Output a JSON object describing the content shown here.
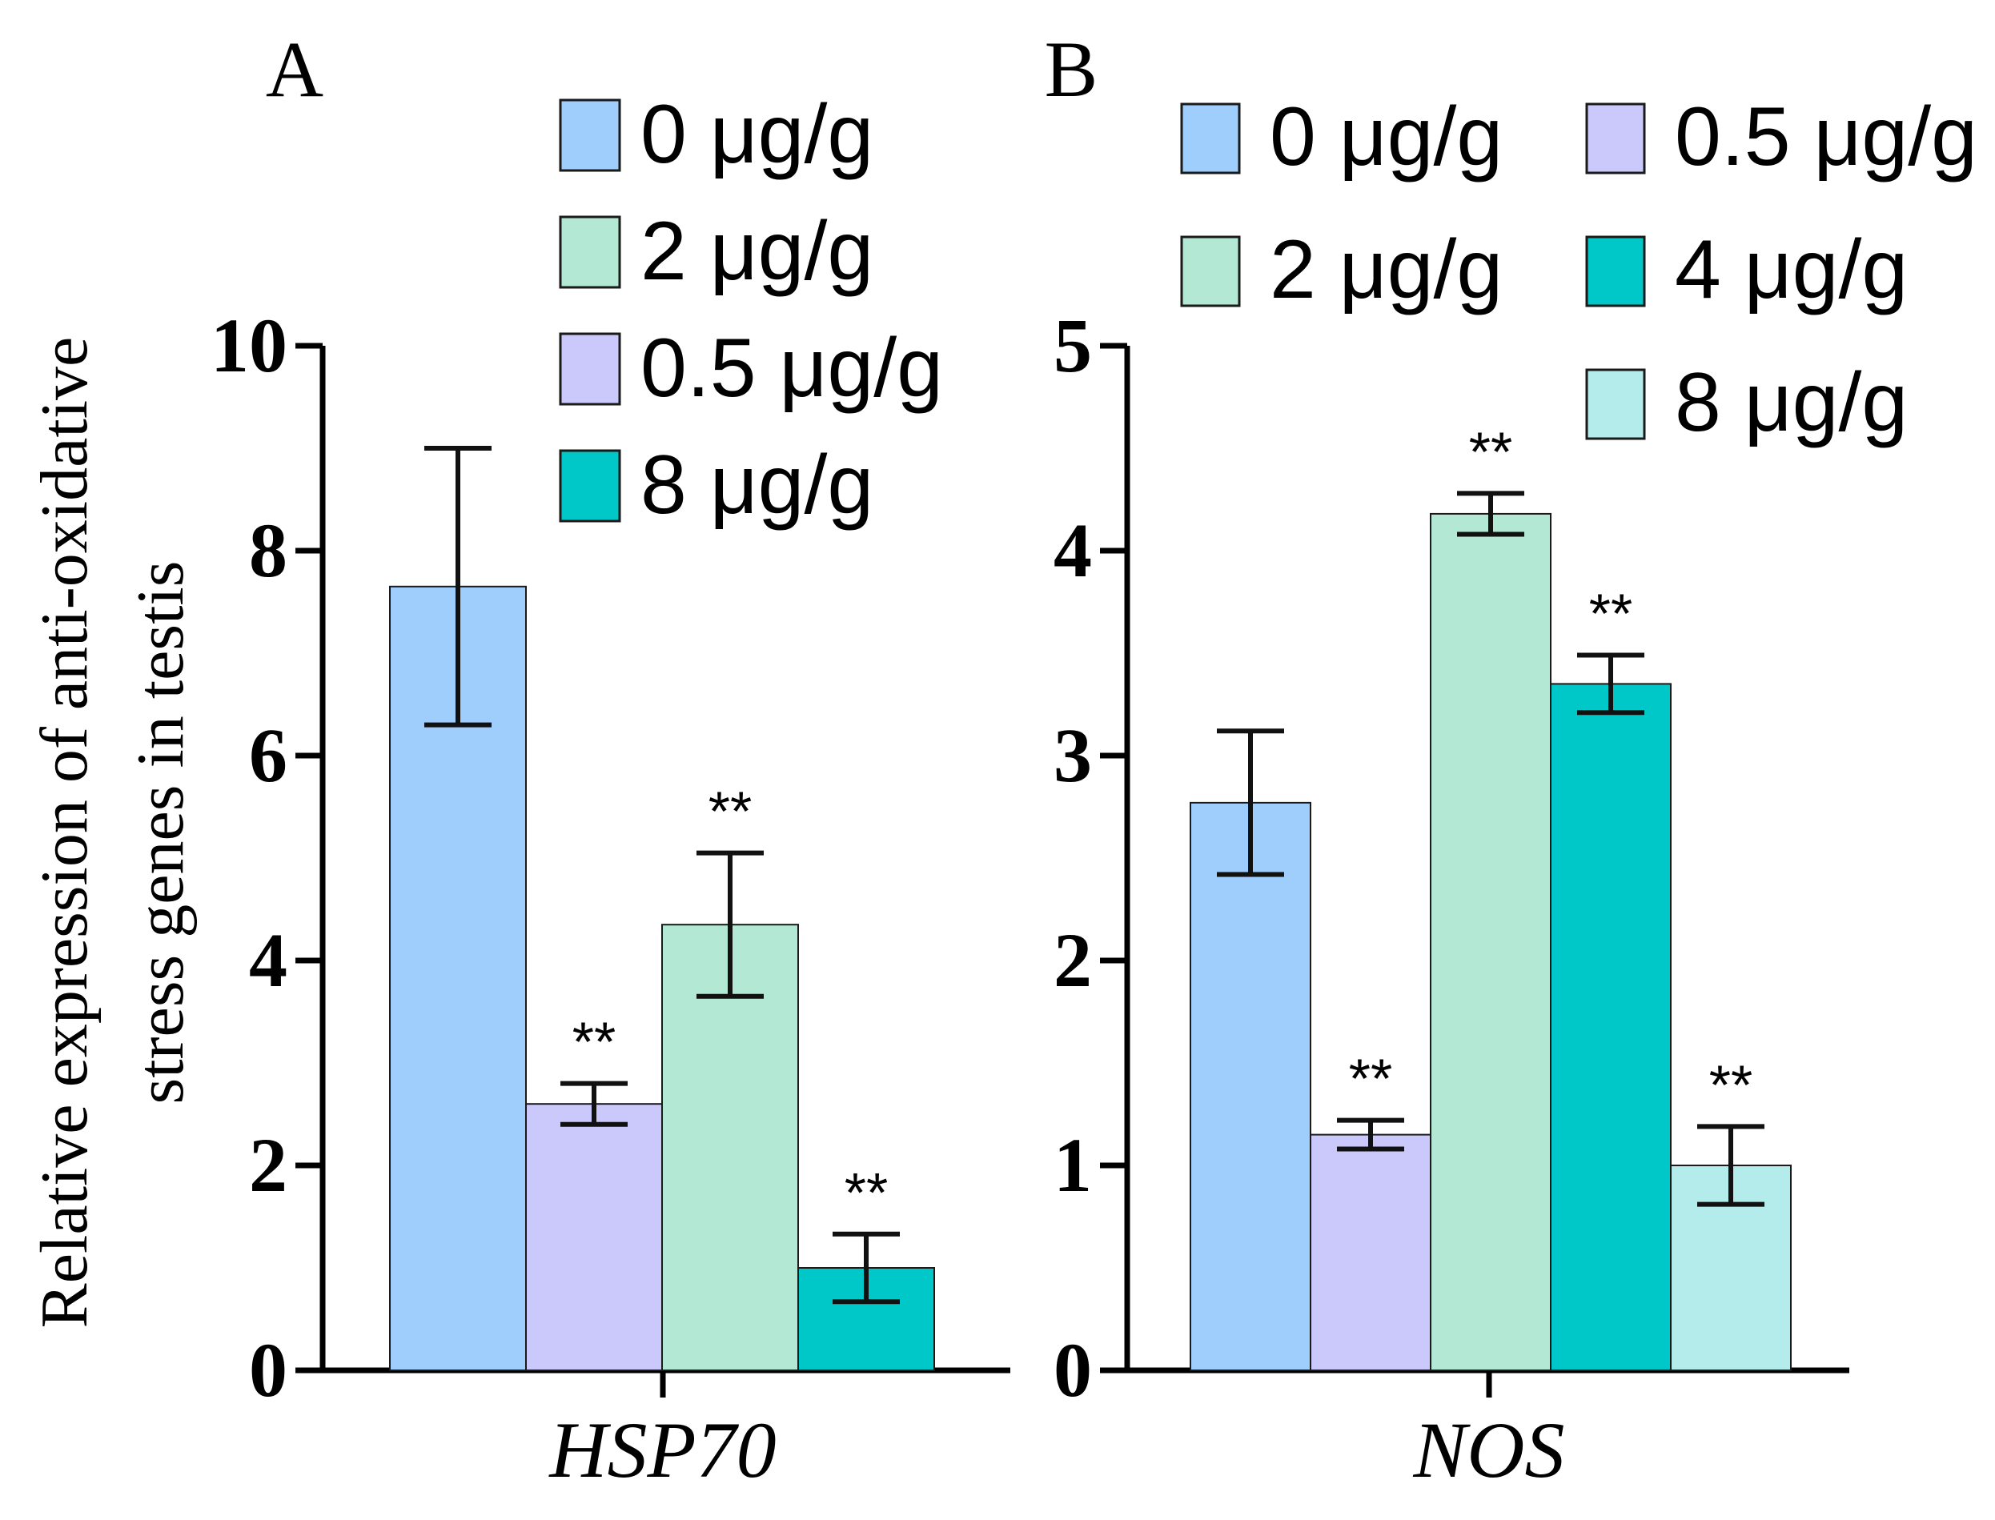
{
  "chart_data": {
    "y_axis_label_lines": [
      "Relative expression of anti-oxidative",
      "stress genes in testis"
    ],
    "panels": [
      {
        "panel_label": "A",
        "type": "bar",
        "category": "HSP70",
        "ylim": [
          0,
          10
        ],
        "yticks": [
          "0",
          "2",
          "4",
          "6",
          "8",
          "10"
        ],
        "legend_labels": [
          "0 μg/g",
          "2 μg/g",
          "0.5 μg/g",
          "8 μg/g"
        ],
        "legend_colors": [
          "#9fcdfc",
          "#b3e9d4",
          "#cbc9fb",
          "#00c8c8"
        ],
        "series": [
          {
            "name": "0 μg/g",
            "value": 7.65,
            "err": 1.35,
            "sig": "",
            "color": "#9fcdfc"
          },
          {
            "name": "0.5 μg/g",
            "value": 2.6,
            "err": 0.2,
            "sig": "**",
            "color": "#cbc9fb"
          },
          {
            "name": "2 μg/g",
            "value": 4.35,
            "err": 0.7,
            "sig": "**",
            "color": "#b3e9d4"
          },
          {
            "name": "8 μg/g",
            "value": 1.0,
            "err": 0.33,
            "sig": "**",
            "color": "#00c8c8"
          }
        ]
      },
      {
        "panel_label": "B",
        "type": "bar",
        "category": "NOS",
        "ylim": [
          0,
          5
        ],
        "yticks": [
          "0",
          "1",
          "2",
          "3",
          "4",
          "5"
        ],
        "legend_labels": [
          "0 μg/g",
          "0.5 μg/g",
          "2 μg/g",
          "4 μg/g",
          "8 μg/g"
        ],
        "legend_colors": [
          "#9fcdfc",
          "#cbc9fb",
          "#b3e9d4",
          "#00c8c8",
          "#b4eceb"
        ],
        "series": [
          {
            "name": "0 μg/g",
            "value": 2.77,
            "err": 0.35,
            "sig": "",
            "color": "#9fcdfc"
          },
          {
            "name": "0.5 μg/g",
            "value": 1.15,
            "err": 0.07,
            "sig": "**",
            "color": "#cbc9fb"
          },
          {
            "name": "2 μg/g",
            "value": 4.18,
            "err": 0.1,
            "sig": "**",
            "color": "#b3e9d4"
          },
          {
            "name": "4 μg/g",
            "value": 3.35,
            "err": 0.14,
            "sig": "**",
            "color": "#00c8c8"
          },
          {
            "name": "8 μg/g",
            "value": 1.0,
            "err": 0.19,
            "sig": "**",
            "color": "#b4eceb"
          }
        ]
      }
    ]
  }
}
